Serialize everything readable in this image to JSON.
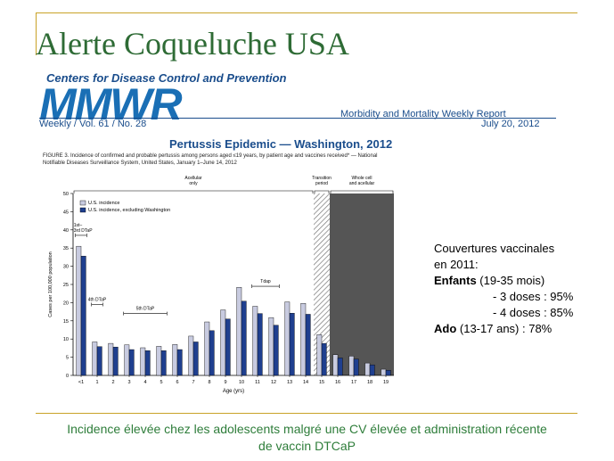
{
  "slide": {
    "title": "Alerte Coqueluche USA",
    "footer_line1": "Incidence élevée chez les adolescents malgré une CV élevée et administration récente",
    "footer_line2": "de vaccin DTCaP"
  },
  "mmwr": {
    "agency": "Centers for Disease Control and Prevention",
    "logo": "MMWR",
    "issue": "Weekly / Vol. 61 / No. 28",
    "report_name": "Morbidity and Mortality Weekly Report",
    "date": "July 20, 2012",
    "epidemic_title": "Pertussis Epidemic — Washington, 2012",
    "figure_caption_line1": "FIGURE 3. Incidence of confirmed and probable pertussis among persons aged ≤19 years, by patient age and vaccines received* — National",
    "figure_caption_line2": "Notifiable Diseases Surveillance System, United States, January 1–June 14, 2012"
  },
  "info_box": {
    "line1": "Couvertures vaccinales",
    "line2": "en 2011:",
    "enfants_bold": "Enfants",
    "enfants_rest": " (19-35 mois)",
    "dose3": "- 3 doses : 95%",
    "dose4": "- 4 doses : 85%",
    "ado_bold": "Ado",
    "ado_rest": " (13-17 ans) : 78%"
  },
  "chart_data": {
    "type": "bar",
    "xlabel": "Age (yrs)",
    "ylabel": "Cases per 100,000 population",
    "ylim": [
      0,
      50
    ],
    "yticks": [
      0,
      5,
      10,
      15,
      20,
      25,
      30,
      35,
      40,
      45,
      50
    ],
    "categories": [
      "<1",
      "1",
      "2",
      "3",
      "4",
      "5",
      "6",
      "7",
      "8",
      "9",
      "10",
      "11",
      "12",
      "13",
      "14",
      "15",
      "16",
      "17",
      "18",
      "19"
    ],
    "series": [
      {
        "name": "U.S. incidence",
        "color": "#c8cbe0",
        "values": [
          35.5,
          9.2,
          8.8,
          8.4,
          7.6,
          8.0,
          8.5,
          10.8,
          14.7,
          18.0,
          24.2,
          19.0,
          15.9,
          20.2,
          19.8,
          11.2,
          5.7,
          5.3,
          3.4,
          1.7
        ]
      },
      {
        "name": "U.S. incidence, excluding Washington",
        "color": "#1f3f8f",
        "values": [
          32.8,
          7.9,
          7.8,
          7.1,
          6.8,
          6.8,
          7.1,
          9.2,
          12.3,
          15.5,
          20.4,
          17.0,
          13.8,
          17.1,
          16.8,
          8.8,
          4.8,
          4.5,
          2.9,
          1.4
        ]
      }
    ],
    "legend_position": "top-left",
    "periods": [
      {
        "label": "Acellular\nonly",
        "from": "<1",
        "to": "14"
      },
      {
        "label": "Transition\nperiod",
        "from": "15",
        "to": "15"
      },
      {
        "label": "Whole cell\nand acellular",
        "from": "16",
        "to": "19"
      }
    ],
    "annotations": [
      {
        "label": "1st–\n3rd DTaP",
        "at": "<1",
        "y": 38.5
      },
      {
        "label": "4th DTaP",
        "at": "1",
        "y": 19.5
      },
      {
        "label": "5th DTaP",
        "at": "4",
        "y": 17
      },
      {
        "label": "Tdap",
        "at": "11",
        "y": 24.5
      }
    ]
  }
}
